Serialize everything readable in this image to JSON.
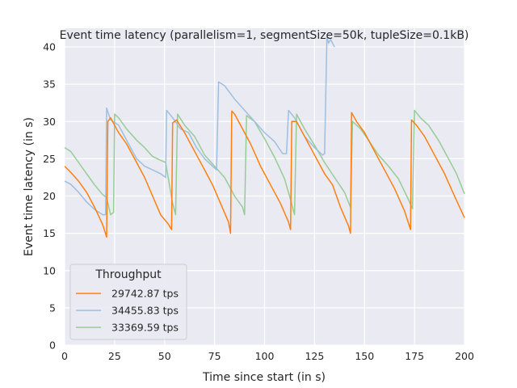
{
  "chart_data": {
    "type": "line",
    "title": "Event time latency (parallelism=1, segmentSize=50k, tupleSize=0.1kB)",
    "xlabel": "Time since start (in s)",
    "ylabel": "Event time latency (in s)",
    "xlim": [
      0,
      200
    ],
    "ylim": [
      0,
      42.5
    ],
    "xticks": [
      0,
      25,
      50,
      75,
      100,
      125,
      150,
      175,
      200
    ],
    "yticks": [
      0,
      5,
      10,
      15,
      20,
      25,
      30,
      35,
      40
    ],
    "grid": true,
    "legend": {
      "title": "Throughput",
      "placement": "lower-left"
    },
    "series": [
      {
        "name": "29742.87 tps",
        "color": "#ff7f0e",
        "points": [
          [
            0,
            24
          ],
          [
            3,
            23.2
          ],
          [
            7,
            22
          ],
          [
            11,
            20.5
          ],
          [
            15,
            18.5
          ],
          [
            19,
            16.2
          ],
          [
            21,
            14.5
          ],
          [
            21.6,
            30
          ],
          [
            23,
            30.5
          ],
          [
            27,
            28.5
          ],
          [
            31,
            27
          ],
          [
            36,
            24.5
          ],
          [
            40,
            22.5
          ],
          [
            44,
            20
          ],
          [
            48,
            17.5
          ],
          [
            52,
            16.2
          ],
          [
            53.5,
            15.5
          ],
          [
            54,
            29.8
          ],
          [
            56,
            30.2
          ],
          [
            60,
            28.5
          ],
          [
            65,
            26
          ],
          [
            70,
            23.5
          ],
          [
            74,
            21.5
          ],
          [
            78,
            19
          ],
          [
            82,
            16.5
          ],
          [
            83,
            15
          ],
          [
            83.6,
            31.4
          ],
          [
            85,
            31
          ],
          [
            88,
            29.5
          ],
          [
            93,
            27
          ],
          [
            98,
            24
          ],
          [
            103,
            21.5
          ],
          [
            108,
            19
          ],
          [
            112,
            16.5
          ],
          [
            113,
            15.5
          ],
          [
            113.6,
            30
          ],
          [
            116,
            30
          ],
          [
            120,
            28
          ],
          [
            125,
            25.5
          ],
          [
            130,
            23
          ],
          [
            134,
            21.5
          ],
          [
            138,
            18.5
          ],
          [
            142,
            16
          ],
          [
            143,
            15
          ],
          [
            143.5,
            31.2
          ],
          [
            146,
            30
          ],
          [
            150,
            28.5
          ],
          [
            155,
            26
          ],
          [
            160,
            23.5
          ],
          [
            165,
            21
          ],
          [
            170,
            18
          ],
          [
            173,
            15.5
          ],
          [
            173.5,
            30.2
          ],
          [
            176,
            29.5
          ],
          [
            180,
            28
          ],
          [
            185,
            25.5
          ],
          [
            190,
            23
          ],
          [
            195,
            20
          ],
          [
            200,
            17.1
          ]
        ]
      },
      {
        "name": "34455.83 tps",
        "color": "#9ebfdf",
        "points": [
          [
            0,
            22
          ],
          [
            3,
            21.6
          ],
          [
            7,
            20.5
          ],
          [
            11,
            19.2
          ],
          [
            15,
            18.2
          ],
          [
            19,
            17.5
          ],
          [
            20.5,
            17.5
          ],
          [
            21,
            31.8
          ],
          [
            23,
            30.2
          ],
          [
            27,
            29.5
          ],
          [
            31,
            27.5
          ],
          [
            36,
            25
          ],
          [
            40,
            24
          ],
          [
            44,
            23.5
          ],
          [
            48,
            23
          ],
          [
            50.5,
            22.5
          ],
          [
            51,
            31.5
          ],
          [
            54,
            30.5
          ],
          [
            58,
            29
          ],
          [
            62,
            28.5
          ],
          [
            66,
            26.5
          ],
          [
            70,
            25
          ],
          [
            74,
            24
          ],
          [
            76,
            23.5
          ],
          [
            77,
            35.3
          ],
          [
            80,
            34.8
          ],
          [
            85,
            33
          ],
          [
            90,
            31.5
          ],
          [
            95,
            30
          ],
          [
            100,
            28.5
          ],
          [
            105,
            27.3
          ],
          [
            109,
            25.7
          ],
          [
            111,
            25.7
          ],
          [
            112,
            31.5
          ],
          [
            115,
            30.5
          ],
          [
            120,
            28
          ],
          [
            125,
            26.5
          ],
          [
            129,
            25.5
          ],
          [
            130,
            25.7
          ],
          [
            131.2,
            41.3
          ],
          [
            132,
            40.5
          ],
          [
            133,
            41
          ],
          [
            135,
            40
          ]
        ]
      },
      {
        "name": "33369.59 tps",
        "color": "#96cc96",
        "points": [
          [
            0,
            26.5
          ],
          [
            3,
            26
          ],
          [
            7,
            24.5
          ],
          [
            11,
            23
          ],
          [
            15,
            21.5
          ],
          [
            19,
            20.2
          ],
          [
            21,
            19.8
          ],
          [
            23,
            17.5
          ],
          [
            24.5,
            17.8
          ],
          [
            25,
            31
          ],
          [
            27,
            30.5
          ],
          [
            31,
            29
          ],
          [
            36,
            27.5
          ],
          [
            40,
            26.5
          ],
          [
            44,
            25.3
          ],
          [
            48,
            24.8
          ],
          [
            50.5,
            24.5
          ],
          [
            54,
            19
          ],
          [
            55.5,
            17.5
          ],
          [
            56.5,
            31
          ],
          [
            60,
            29.5
          ],
          [
            65,
            28
          ],
          [
            70,
            25.5
          ],
          [
            75,
            24
          ],
          [
            80,
            22.5
          ],
          [
            85,
            20
          ],
          [
            89,
            18.5
          ],
          [
            90,
            17.5
          ],
          [
            91,
            30.8
          ],
          [
            95,
            30
          ],
          [
            100,
            27.7
          ],
          [
            105,
            25.2
          ],
          [
            110,
            22.3
          ],
          [
            113,
            19.5
          ],
          [
            115,
            17.5
          ],
          [
            116,
            31
          ],
          [
            120,
            29
          ],
          [
            125,
            26.8
          ],
          [
            130,
            24.5
          ],
          [
            135,
            22.5
          ],
          [
            140,
            20.5
          ],
          [
            143,
            18.5
          ],
          [
            144,
            30
          ],
          [
            148,
            29
          ],
          [
            152,
            27.5
          ],
          [
            157,
            25.5
          ],
          [
            162,
            24
          ],
          [
            167,
            22.3
          ],
          [
            172,
            19.5
          ],
          [
            174,
            18.3
          ],
          [
            175,
            31.5
          ],
          [
            178,
            30.5
          ],
          [
            182,
            29.5
          ],
          [
            187,
            27.5
          ],
          [
            192,
            25
          ],
          [
            196,
            23
          ],
          [
            200,
            20.3
          ]
        ]
      }
    ]
  }
}
